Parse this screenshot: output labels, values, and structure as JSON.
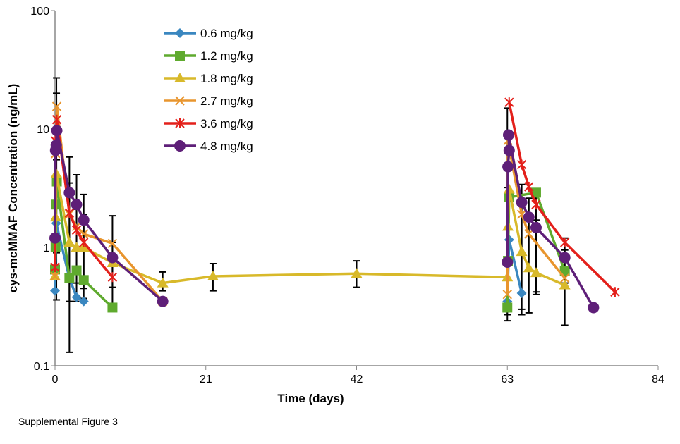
{
  "chart_data": {
    "type": "line",
    "title": "",
    "xlabel": "Time (days)",
    "ylabel": "cys-mcMMAF Concentration (ng/mL)",
    "xlim": [
      0,
      84
    ],
    "ylim": [
      0.1,
      100
    ],
    "yscale": "log",
    "xticks": [
      "0",
      "21",
      "42",
      "63",
      "84"
    ],
    "yticks": [
      "0.1",
      "1",
      "10",
      "100"
    ],
    "grid": false,
    "legend_placement": "top-left",
    "series": [
      {
        "name": "0.6 mg/kg",
        "color": "#3a87c0",
        "marker": "diamond",
        "segments": [
          [
            [
              0,
              0.43
            ],
            [
              0.17,
              1.6
            ],
            [
              2,
              0.55
            ],
            [
              3,
              0.38
            ],
            [
              4,
              0.35
            ]
          ],
          [
            [
              63,
              0.35
            ],
            [
              63.25,
              1.16
            ],
            [
              65,
              0.41
            ]
          ]
        ]
      },
      {
        "name": "1.2 mg/kg",
        "color": "#5faa2e",
        "marker": "square",
        "segments": [
          [
            [
              0,
              0.65
            ],
            [
              0.08,
              1.0
            ],
            [
              0.17,
              2.3
            ],
            [
              0.25,
              3.6
            ],
            [
              2,
              0.55
            ],
            [
              3,
              0.64
            ],
            [
              4,
              0.53
            ],
            [
              8,
              0.31
            ]
          ],
          [
            [
              63,
              0.31
            ],
            [
              63.08,
              0.77
            ],
            [
              63.25,
              2.65
            ],
            [
              67,
              2.9
            ],
            [
              71,
              0.63
            ]
          ]
        ]
      },
      {
        "name": "1.8 mg/kg",
        "color": "#d8b92a",
        "marker": "triangle",
        "segments": [
          [
            [
              0,
              0.57
            ],
            [
              0.08,
              1.8
            ],
            [
              0.17,
              4.2
            ],
            [
              2,
              1.1
            ],
            [
              3,
              1.0
            ],
            [
              4,
              1.0
            ],
            [
              8,
              0.74
            ],
            [
              15,
              0.5
            ],
            [
              22,
              0.57
            ],
            [
              42,
              0.6
            ],
            [
              63,
              0.56
            ],
            [
              63.08,
              1.5
            ],
            [
              63.25,
              3.1
            ],
            [
              65,
              0.92
            ],
            [
              66,
              0.67
            ],
            [
              67,
              0.61
            ],
            [
              71,
              0.48
            ]
          ]
        ]
      },
      {
        "name": "2.7 mg/kg",
        "color": "#e8952e",
        "marker": "x",
        "segments": [
          [
            [
              0,
              0.57
            ],
            [
              0.08,
              6.2
            ],
            [
              0.25,
              15.5
            ],
            [
              2,
              1.9
            ],
            [
              3,
              1.5
            ],
            [
              4,
              1.3
            ],
            [
              8,
              1.08
            ],
            [
              15,
              0.35
            ]
          ],
          [
            [
              63,
              0.4
            ],
            [
              63.08,
              8
            ],
            [
              65,
              1.9
            ],
            [
              66,
              1.3
            ],
            [
              71,
              0.55
            ]
          ]
        ]
      },
      {
        "name": "3.6 mg/kg",
        "color": "#e3201b",
        "marker": "star",
        "segments": [
          [
            [
              0,
              0.68
            ],
            [
              0.08,
              7.9
            ],
            [
              0.25,
              12
            ],
            [
              2,
              1.95
            ],
            [
              3,
              1.4
            ],
            [
              4,
              1.1
            ],
            [
              8,
              0.56
            ]
          ],
          [
            [
              63.25,
              16.8
            ],
            [
              65,
              5.0
            ],
            [
              66,
              3.25
            ],
            [
              67,
              2.3
            ],
            [
              71,
              1.1
            ],
            [
              78,
              0.42
            ]
          ]
        ]
      },
      {
        "name": "4.8 mg/kg",
        "color": "#5e1f78",
        "marker": "circle",
        "segments": [
          [
            [
              0,
              1.2
            ],
            [
              0.08,
              6.6
            ],
            [
              0.17,
              7.3
            ],
            [
              0.25,
              9.7
            ],
            [
              2,
              2.9
            ],
            [
              3,
              2.3
            ],
            [
              4,
              1.7
            ],
            [
              8,
              0.82
            ],
            [
              15,
              0.35
            ]
          ],
          [
            [
              63,
              0.75
            ],
            [
              63.08,
              4.8
            ],
            [
              63.25,
              6.6
            ],
            [
              63.17,
              8.9
            ],
            [
              65,
              2.4
            ],
            [
              66,
              1.8
            ],
            [
              67,
              1.47
            ],
            [
              71,
              0.82
            ],
            [
              75,
              0.31
            ]
          ]
        ]
      }
    ],
    "error_bars": [
      [
        0.2,
        0.36,
        27
      ],
      [
        0.2,
        1.2,
        20
      ],
      [
        0.2,
        0.9,
        5.5
      ],
      [
        2,
        0.13,
        5.8
      ],
      [
        2,
        0.35,
        3.5
      ],
      [
        3,
        0.35,
        4.1
      ],
      [
        3,
        0.5,
        2.1
      ],
      [
        4,
        0.37,
        2.8
      ],
      [
        4,
        0.45,
        1.9
      ],
      [
        8,
        0.31,
        1.85
      ],
      [
        8,
        0.46,
        1.1
      ],
      [
        15,
        0.43,
        0.62
      ],
      [
        22,
        0.43,
        0.73
      ],
      [
        42,
        0.46,
        0.77
      ],
      [
        63,
        0.24,
        15
      ],
      [
        63,
        0.27,
        3.2
      ],
      [
        65,
        0.27,
        3.4
      ],
      [
        65,
        0.3,
        2.8
      ],
      [
        66,
        0.28,
        2.6
      ],
      [
        67,
        0.4,
        3.0
      ],
      [
        67,
        0.42,
        1.7
      ],
      [
        71,
        0.22,
        0.95
      ],
      [
        71,
        0.5,
        1.2
      ]
    ]
  },
  "caption": "Supplemental Figure 3"
}
